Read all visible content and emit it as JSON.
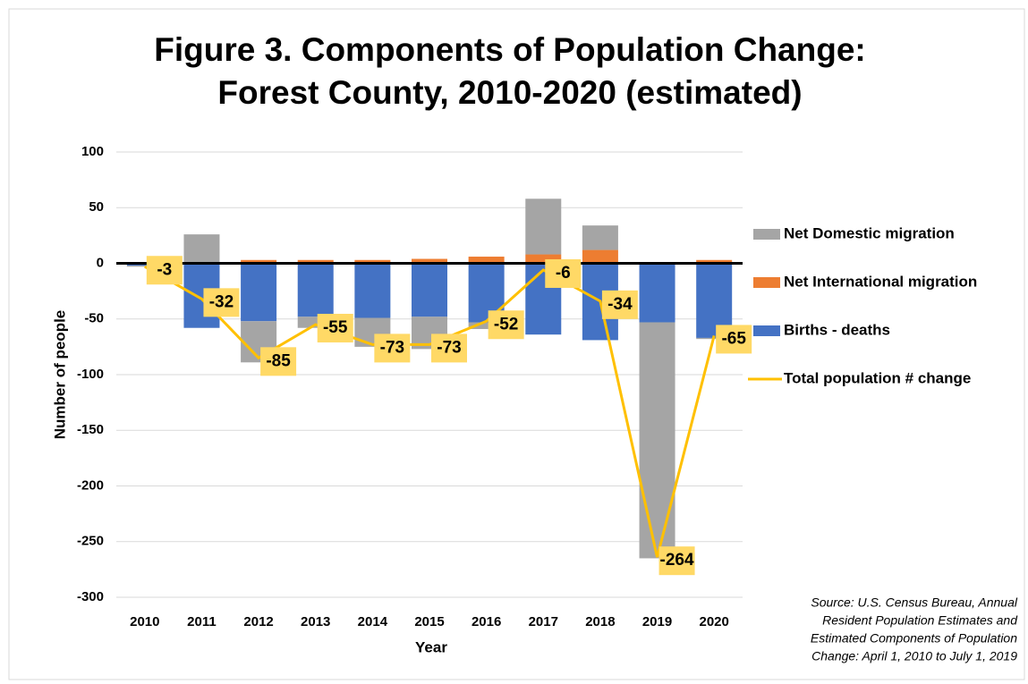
{
  "chart_data": {
    "type": "bar",
    "title": [
      "Figure 3. Components of Population Change:",
      "Forest County, 2010-2020 (estimated)"
    ],
    "x_label": "Year",
    "y_label": "Number of people",
    "categories": [
      "2010",
      "2011",
      "2012",
      "2013",
      "2014",
      "2015",
      "2016",
      "2017",
      "2018",
      "2019",
      "2020"
    ],
    "series": [
      {
        "name": "Net Domestic migration",
        "color": "#a5a5a5",
        "type": "bar",
        "values": [
          -1,
          25,
          -37,
          -10,
          -26,
          -29,
          -6,
          50,
          22,
          -212,
          -1
        ]
      },
      {
        "name": "Net International migration",
        "color": "#ed7d31",
        "type": "bar",
        "values": [
          0,
          1,
          3,
          3,
          3,
          4,
          6,
          8,
          12,
          0,
          3
        ]
      },
      {
        "name": "Births - deaths",
        "color": "#4472c4",
        "type": "bar",
        "values": [
          -2,
          -58,
          -52,
          -48,
          -49,
          -48,
          -53,
          -64,
          -69,
          -53,
          -67
        ]
      },
      {
        "name": "Total population # change",
        "color": "#ffc000",
        "type": "line",
        "values": [
          -3,
          -32,
          -85,
          -55,
          -73,
          -73,
          -52,
          -6,
          -34,
          -264,
          -65
        ]
      }
    ],
    "stacked": true,
    "ylim": [
      -300,
      100
    ],
    "yticks": [
      -300,
      -250,
      -200,
      -150,
      -100,
      -50,
      0,
      50,
      100
    ],
    "grid": true,
    "legend": "right",
    "source": [
      "Source: U.S. Census Bureau, Annual",
      "Resident Population Estimates and",
      "Estimated Components of Population",
      "Change: April 1, 2010 to July 1, 2019"
    ]
  }
}
